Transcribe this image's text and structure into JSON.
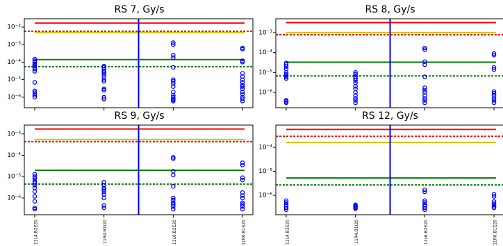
{
  "chart_data": [
    {
      "type": "scatter",
      "title": "RS 7, Gy/s",
      "log_y": true,
      "color": "#0000ff",
      "categories": [
        null,
        null,
        null,
        null
      ],
      "xlim": [
        -0.15,
        3.15
      ],
      "ylim": [
        2.5e-07,
        0.03
      ],
      "yticks": [
        {
          "value": 1e-06,
          "label": "10⁻⁶"
        },
        {
          "value": 1e-05,
          "label": "10⁻⁵"
        },
        {
          "value": 0.0001,
          "label": "10⁻⁴"
        },
        {
          "value": 0.001,
          "label": "10⁻³"
        },
        {
          "value": 0.01,
          "label": "10⁻²"
        }
      ],
      "values": [
        [
          1e-06,
          1.3e-06,
          1.8e-06,
          2.3e-06,
          7e-06,
          3e-05,
          4e-05,
          5e-05,
          6e-05,
          7e-05,
          8e-05,
          0.0001,
          0.00012,
          0.00015
        ],
        [
          8e-07,
          1e-06,
          2.5e-06,
          3e-06,
          8e-06,
          1e-05,
          1.5e-05,
          2e-05,
          2.5e-05,
          3e-05,
          4e-05,
          5e-05,
          6e-05
        ],
        [
          6e-07,
          7e-07,
          8e-07,
          1e-06,
          1.3e-06,
          2e-06,
          4e-06,
          6e-06,
          8e-06,
          1e-05,
          5e-05,
          0.00018,
          0.00025,
          0.001,
          0.0013
        ],
        [
          6e-07,
          8e-07,
          1e-06,
          1.5e-06,
          2e-06,
          3e-06,
          4e-06,
          5e-06,
          7e-06,
          1e-05,
          1.5e-05,
          2.3e-05,
          0.0001,
          0.00012,
          0.00055,
          0.00065
        ]
      ],
      "hlines": [
        {
          "value": 0.017,
          "color": "#ff0000",
          "dashed": false
        },
        {
          "value": 0.0058,
          "color": "#ff0000",
          "dashed": true
        },
        {
          "value": 0.0048,
          "color": "#d4c400",
          "dashed": false
        },
        {
          "value": 0.00014,
          "color": "#008000",
          "dashed": false
        },
        {
          "value": 5.5e-05,
          "color": "#008000",
          "dashed": true
        }
      ],
      "vline": {
        "value": 1.5,
        "color": "#0000ff"
      }
    },
    {
      "type": "scatter",
      "title": "RS 8, Gy/s",
      "log_y": true,
      "color": "#0000ff",
      "categories": [
        null,
        null,
        null,
        null
      ],
      "xlim": [
        -0.15,
        3.15
      ],
      "ylim": [
        1.7e-07,
        0.005
      ],
      "yticks": [
        {
          "value": 1e-06,
          "label": "10⁻⁶"
        },
        {
          "value": 1e-05,
          "label": "10⁻⁵"
        },
        {
          "value": 0.0001,
          "label": "10⁻⁴"
        },
        {
          "value": 0.001,
          "label": "10⁻³"
        }
      ],
      "values": [
        [
          3e-07,
          3.5e-07,
          4e-07,
          5e-06,
          6e-06,
          7e-06,
          8e-06,
          1e-05,
          1.5e-05,
          2e-05,
          2.5e-05,
          3e-05
        ],
        [
          3e-07,
          4e-07,
          5e-07,
          7e-07,
          1e-06,
          1.5e-06,
          2e-06,
          3e-06,
          4e-06,
          5e-06,
          6e-06,
          8e-06,
          1e-05
        ],
        [
          3e-07,
          4e-07,
          5e-07,
          7e-07,
          1e-06,
          1.3e-06,
          1.7e-06,
          6e-06,
          2.5e-05,
          3.5e-05,
          0.00014,
          0.00017
        ],
        [
          3e-07,
          4e-07,
          5e-07,
          7e-07,
          9e-07,
          1.1e-06,
          1.4e-05,
          1.8e-05,
          7.5e-05,
          9e-05
        ]
      ],
      "hlines": [
        {
          "value": 0.0032,
          "color": "#ff0000",
          "dashed": false
        },
        {
          "value": 0.00079,
          "color": "#ff0000",
          "dashed": true
        },
        {
          "value": 0.001,
          "color": "#d4c400",
          "dashed": false
        },
        {
          "value": 3.3e-05,
          "color": "#008000",
          "dashed": false
        },
        {
          "value": 6.7e-06,
          "color": "#008000",
          "dashed": true
        }
      ],
      "vline": {
        "value": 1.5,
        "color": "#0000ff"
      }
    },
    {
      "type": "scatter",
      "title": "RS 9, Gy/s",
      "log_y": true,
      "color": "#0000ff",
      "categories": [
        "11L4.B2E20",
        "11R4.B1I20",
        "11L6.B2E20",
        "11R6.B1E20"
      ],
      "xlim": [
        -0.15,
        3.15
      ],
      "ylim": [
        1.65e-07,
        0.0026
      ],
      "yticks": [
        {
          "value": 1e-06,
          "label": "10⁻⁶"
        },
        {
          "value": 1e-05,
          "label": "10⁻⁵"
        },
        {
          "value": 0.0001,
          "label": "10⁻⁴"
        },
        {
          "value": 0.001,
          "label": "10⁻³"
        }
      ],
      "values": [
        [
          3e-07,
          3.5e-07,
          7e-07,
          1.2e-06,
          2e-06,
          3e-06,
          4e-06,
          5e-06,
          6e-06,
          8e-06,
          1e-05,
          1.3e-05
        ],
        [
          3.5e-07,
          4.5e-07,
          1e-06,
          1.5e-06,
          2e-06,
          2.5e-06,
          3e-06,
          4e-06,
          5.5e-06
        ],
        [
          3e-07,
          4e-07,
          5e-07,
          6e-07,
          8e-07,
          1e-06,
          3.5e-06,
          1.2e-05,
          1.8e-05,
          7e-05,
          8e-05
        ],
        [
          3e-07,
          4e-07,
          5e-07,
          6e-07,
          1e-06,
          1.3e-06,
          1.8e-06,
          7e-06,
          9e-06,
          3.5e-05,
          4.5e-05
        ]
      ],
      "hlines": [
        {
          "value": 0.0017,
          "color": "#ff0000",
          "dashed": false
        },
        {
          "value": 0.00044,
          "color": "#ff0000",
          "dashed": true
        },
        {
          "value": 0.00055,
          "color": "#d4c400",
          "dashed": false
        },
        {
          "value": 2e-05,
          "color": "#008000",
          "dashed": false
        },
        {
          "value": 4.5e-06,
          "color": "#008000",
          "dashed": true
        }
      ],
      "vline": {
        "value": 1.5,
        "color": "#0000ff"
      }
    },
    {
      "type": "scatter",
      "title": "RS 12, Gy/s",
      "log_y": true,
      "color": "#0000ff",
      "categories": [
        "11L4.B2E20",
        "11R4.B1I20",
        "11L6.B2E20",
        "11R6.B1E20"
      ],
      "xlim": [
        -0.15,
        3.15
      ],
      "ylim": [
        1.55e-07,
        0.00085
      ],
      "yticks": [
        {
          "value": 1e-06,
          "label": "10⁻⁶"
        },
        {
          "value": 1e-05,
          "label": "10⁻⁵"
        },
        {
          "value": 0.0001,
          "label": "10⁻⁴"
        }
      ],
      "values": [
        [
          2.5e-07,
          3e-07,
          3.5e-07,
          4e-07,
          5e-07,
          6e-07
        ],
        [
          2.8e-07,
          3e-07,
          3.3e-07,
          3.6e-07,
          4e-07
        ],
        [
          2.5e-07,
          3e-07,
          3.5e-07,
          4e-07,
          5e-07,
          6e-07,
          1.4e-06,
          1.7e-06
        ],
        [
          3e-07,
          3.5e-07,
          4e-07,
          4.5e-07,
          5.5e-07,
          9e-07,
          1.1e-06
        ]
      ],
      "hlines": [
        {
          "value": 0.00056,
          "color": "#ff0000",
          "dashed": false
        },
        {
          "value": 0.00029,
          "color": "#ff0000",
          "dashed": true
        },
        {
          "value": 0.00016,
          "color": "#d4c400",
          "dashed": false
        },
        {
          "value": 5.3e-06,
          "color": "#008000",
          "dashed": false
        },
        {
          "value": 2.7e-06,
          "color": "#008000",
          "dashed": true
        }
      ],
      "vline": {
        "value": 1.5,
        "color": "#0000ff"
      }
    }
  ]
}
